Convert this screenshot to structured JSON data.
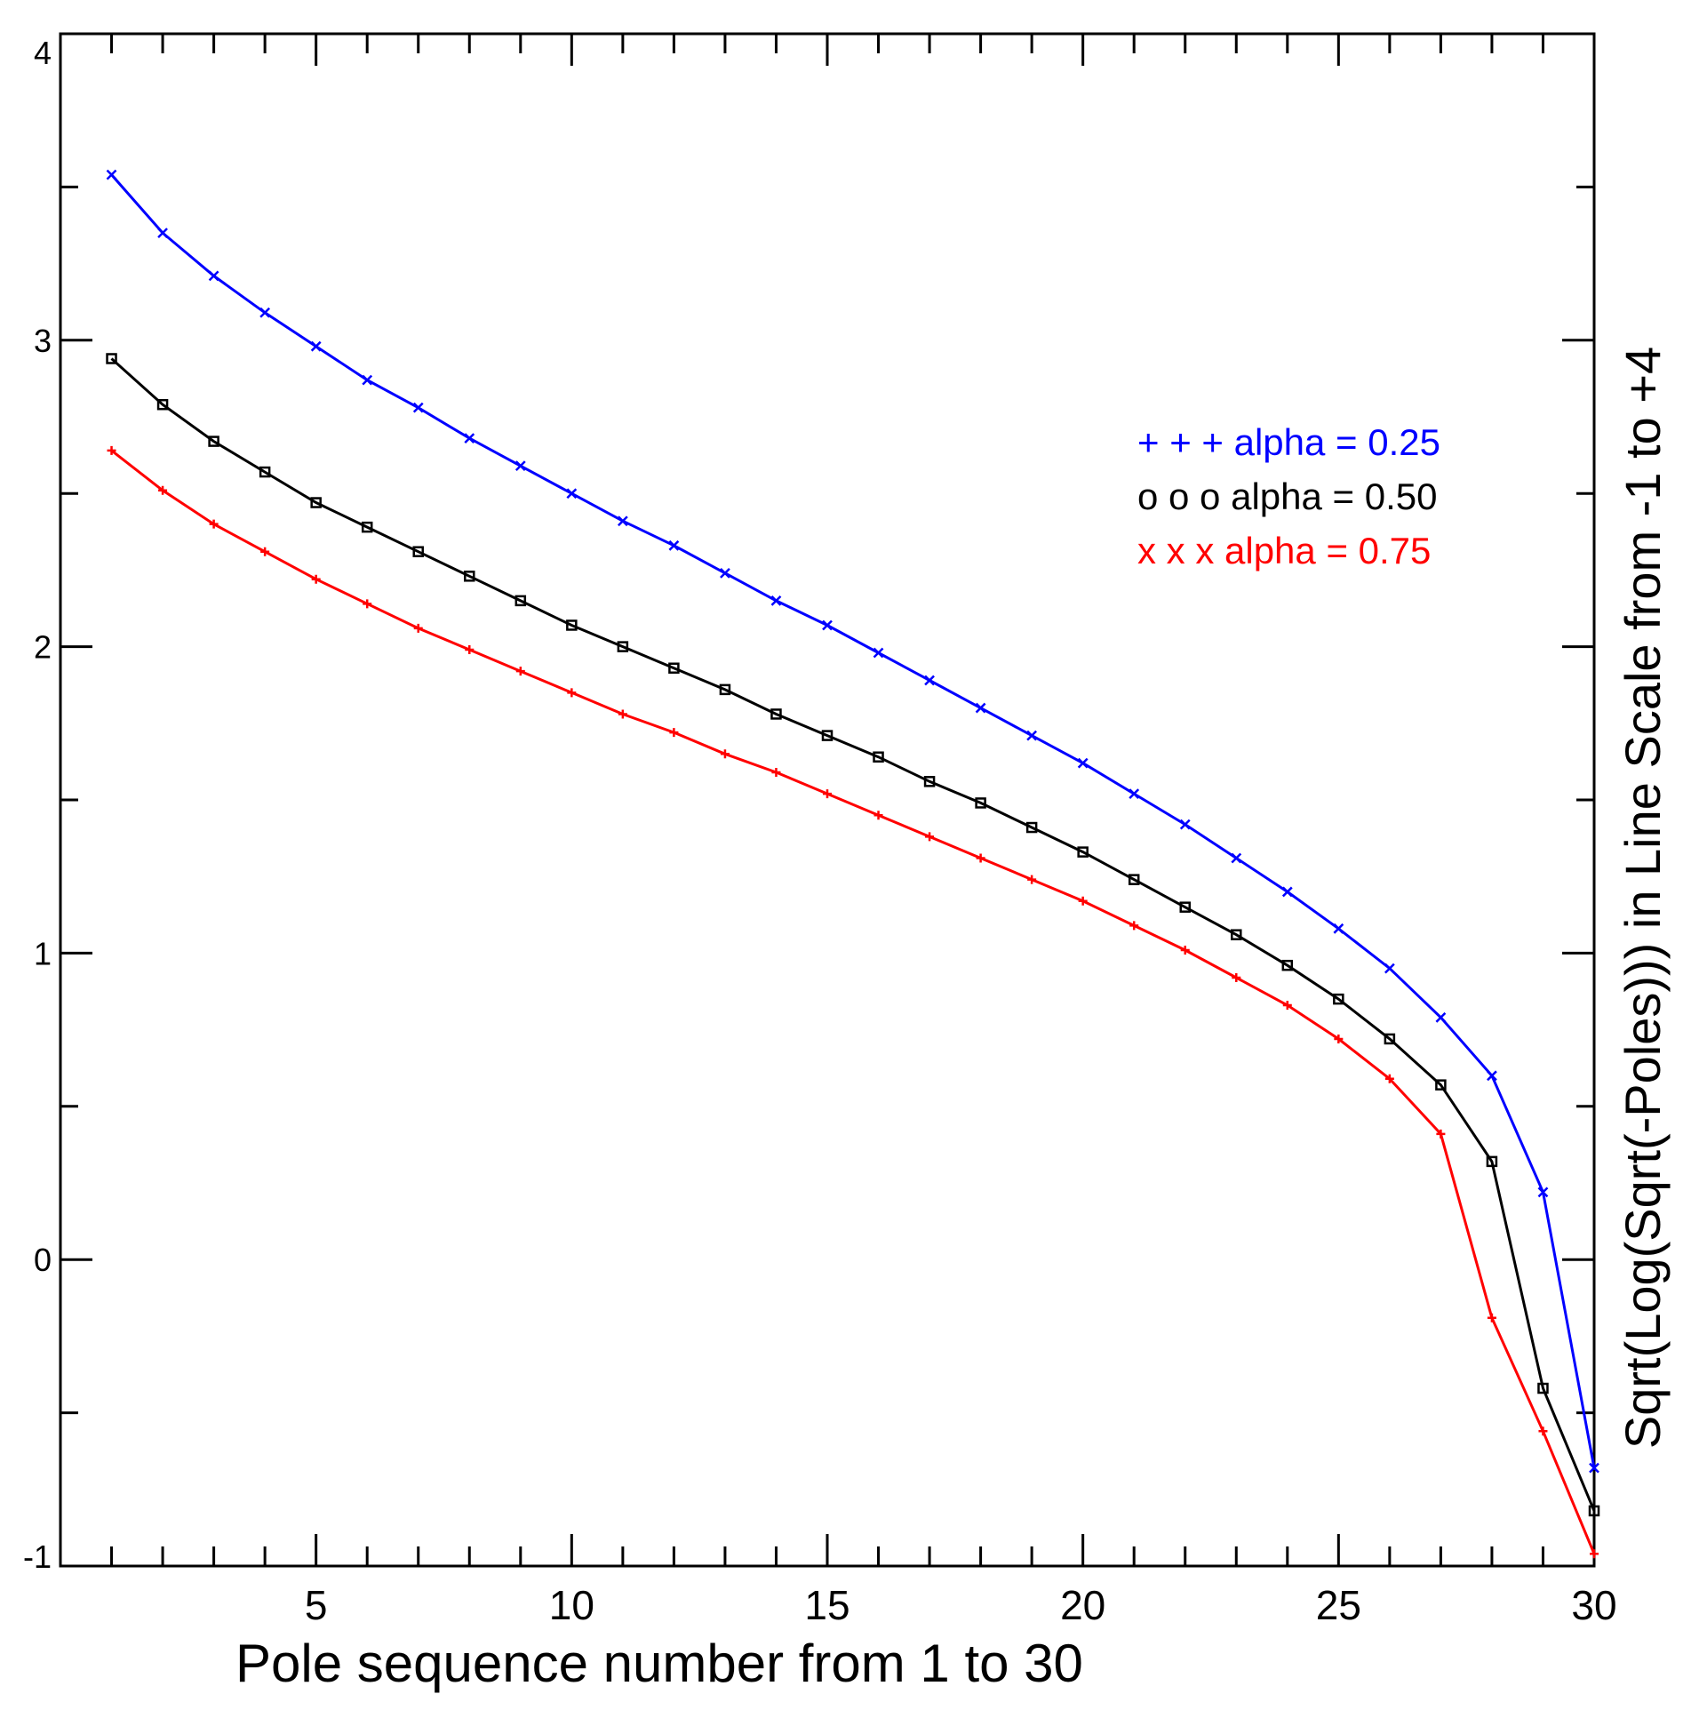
{
  "chart_data": {
    "type": "line",
    "xlabel": "Pole sequence number from 1 to 30",
    "ylabel": "Sqrt(Log(Sqrt(-Poles))) in Line Scale from  -1  to  +4",
    "xlim": [
      0,
      30
    ],
    "ylim": [
      -1,
      4
    ],
    "x_ticks": [
      5,
      10,
      15,
      20,
      25,
      30
    ],
    "y_ticks": [
      -1,
      0,
      1,
      2,
      3,
      4
    ],
    "x": [
      1,
      2,
      3,
      4,
      5,
      6,
      7,
      8,
      9,
      10,
      11,
      12,
      13,
      14,
      15,
      16,
      17,
      18,
      19,
      20,
      21,
      22,
      23,
      24,
      25,
      26,
      27,
      28,
      29,
      30
    ],
    "series": [
      {
        "name": "alpha = 0.25",
        "legend_label": "+ + + alpha = 0.25",
        "color": "#0000ff",
        "marker": "x",
        "values": [
          3.54,
          3.35,
          3.21,
          3.09,
          2.98,
          2.87,
          2.78,
          2.68,
          2.59,
          2.5,
          2.41,
          2.33,
          2.24,
          2.15,
          2.07,
          1.98,
          1.89,
          1.8,
          1.71,
          1.62,
          1.52,
          1.42,
          1.31,
          1.2,
          1.08,
          0.95,
          0.79,
          0.6,
          0.22,
          -0.68
        ]
      },
      {
        "name": "alpha = 0.50",
        "legend_label": "o o o alpha = 0.50",
        "color": "#000000",
        "marker": "square",
        "values": [
          2.94,
          2.79,
          2.67,
          2.57,
          2.47,
          2.39,
          2.31,
          2.23,
          2.15,
          2.07,
          2.0,
          1.93,
          1.86,
          1.78,
          1.71,
          1.64,
          1.56,
          1.49,
          1.41,
          1.33,
          1.24,
          1.15,
          1.06,
          0.96,
          0.85,
          0.72,
          0.57,
          0.32,
          -0.42,
          -0.82
        ]
      },
      {
        "name": "alpha = 0.75",
        "legend_label": "x x x  alpha = 0.75",
        "color": "#ff0000",
        "marker": "plus",
        "values": [
          2.64,
          2.51,
          2.4,
          2.31,
          2.22,
          2.14,
          2.06,
          1.99,
          1.92,
          1.85,
          1.78,
          1.72,
          1.65,
          1.59,
          1.52,
          1.45,
          1.38,
          1.31,
          1.24,
          1.17,
          1.09,
          1.01,
          0.92,
          0.83,
          0.72,
          0.59,
          0.41,
          -0.19,
          -0.56,
          -0.96
        ]
      }
    ]
  }
}
